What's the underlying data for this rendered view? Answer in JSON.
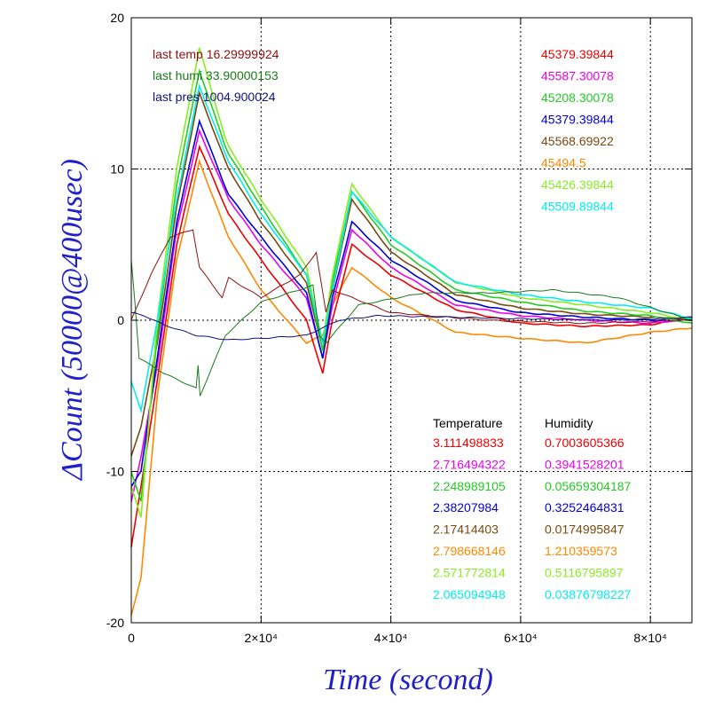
{
  "chart_data": {
    "type": "line",
    "xlabel": "Time (second)",
    "ylabel": "ΔCount (50000@400usec)",
    "xlim": [
      0,
      86400
    ],
    "ylim": [
      -20,
      20
    ],
    "x_ticks": [
      {
        "value": 0,
        "label": "0"
      },
      {
        "value": 20000,
        "label": "2×10⁴"
      },
      {
        "value": 40000,
        "label": "4×10⁴"
      },
      {
        "value": 60000,
        "label": "6×10⁴"
      },
      {
        "value": 80000,
        "label": "8×10⁴"
      }
    ],
    "y_ticks": [
      {
        "value": -20,
        "label": "-20"
      },
      {
        "value": -10,
        "label": "-10"
      },
      {
        "value": 0,
        "label": "0"
      },
      {
        "value": 10,
        "label": "10"
      },
      {
        "value": 20,
        "label": "20"
      }
    ],
    "grid": true,
    "last_values": [
      {
        "label": "last temp 16.29999924",
        "color": "#8b1010"
      },
      {
        "label": "last humi 33.90000153",
        "color": "#1a7a1a"
      },
      {
        "label": "last pres 1004.900024",
        "color": "#10107a"
      }
    ],
    "series_labels": [
      {
        "label": "45379.39844",
        "color": "#ee0000"
      },
      {
        "label": "45587.30078",
        "color": "#ee00ee"
      },
      {
        "label": "45208.30078",
        "color": "#22cc22"
      },
      {
        "label": "45379.39844",
        "color": "#0000dd"
      },
      {
        "label": "45568.69922",
        "color": "#7a4a10"
      },
      {
        "label": "45494.5",
        "color": "#ff8800"
      },
      {
        "label": "45426.39844",
        "color": "#88ee22"
      },
      {
        "label": "45509.89844",
        "color": "#00eeee"
      }
    ],
    "coef_header": {
      "temperature": "Temperature",
      "humidity": "Humidity"
    },
    "coefficients": [
      {
        "temperature": "3.111498833",
        "humidity": "0.7003605366",
        "color": "#ee0000"
      },
      {
        "temperature": "2.716494322",
        "humidity": "0.3941528201",
        "color": "#ee00ee"
      },
      {
        "temperature": "2.248989105",
        "humidity": "0.05659304187",
        "color": "#22cc22"
      },
      {
        "temperature": "2.38207984",
        "humidity": "0.3252464831",
        "color": "#0000dd"
      },
      {
        "temperature": "2.17414403",
        "humidity": "0.0174995847",
        "color": "#7a4a10"
      },
      {
        "temperature": "2.798668146",
        "humidity": "1.210359573",
        "color": "#ff8800"
      },
      {
        "temperature": "2.571772814",
        "humidity": "0.5116795897",
        "color": "#88ee22"
      },
      {
        "temperature": "2.065094948",
        "humidity": "0.03876798227",
        "color": "#00eeee"
      }
    ],
    "series": [
      {
        "color": "#ff8800",
        "x": [
          0,
          1500,
          4000,
          7000,
          10500,
          14500,
          15000,
          20000,
          27000,
          29500,
          31000,
          34000,
          40000,
          50000,
          60000,
          70000,
          80000,
          86400
        ],
        "y": [
          -19.5,
          -17,
          -5,
          4,
          10.5,
          6,
          5.5,
          2,
          -1.5,
          -1,
          1,
          3.5,
          1.5,
          -0.8,
          -1.2,
          -1.5,
          -0.8,
          -0.5
        ]
      },
      {
        "color": "#ee0000",
        "x": [
          0,
          1500,
          4000,
          7000,
          10500,
          14500,
          15000,
          20000,
          27000,
          29500,
          31000,
          34000,
          40000,
          50000,
          60000,
          70000,
          80000,
          86400
        ],
        "y": [
          -15,
          -11,
          -4,
          5,
          11.5,
          7.5,
          7,
          4,
          0,
          -3.5,
          0,
          5,
          3,
          0.7,
          -0.2,
          -0.4,
          -0.3,
          0.2
        ]
      },
      {
        "color": "#ee00ee",
        "x": [
          0,
          1500,
          4000,
          7000,
          10500,
          14500,
          15000,
          20000,
          27000,
          29500,
          31000,
          34000,
          40000,
          50000,
          60000,
          70000,
          80000,
          86400
        ],
        "y": [
          -12,
          -9,
          -3,
          6,
          12.5,
          8.5,
          8,
          5,
          1.5,
          -2.5,
          1,
          6,
          3.5,
          1,
          0.3,
          0,
          -0.2,
          0.1
        ]
      },
      {
        "color": "#0000dd",
        "x": [
          0,
          1500,
          4000,
          7000,
          10500,
          14500,
          15000,
          20000,
          27000,
          29500,
          31000,
          34000,
          40000,
          50000,
          60000,
          70000,
          80000,
          86400
        ],
        "y": [
          -11,
          -10,
          -2.5,
          6.5,
          13.2,
          8.8,
          8.3,
          5.5,
          1.8,
          -2.5,
          1.5,
          6.5,
          4,
          1.3,
          0.5,
          0.2,
          0,
          0.1
        ]
      },
      {
        "color": "#7a4a10",
        "x": [
          0,
          1500,
          4000,
          7000,
          10500,
          14500,
          15000,
          20000,
          27000,
          29500,
          31000,
          34000,
          40000,
          50000,
          60000,
          70000,
          80000,
          86400
        ],
        "y": [
          -9,
          -7,
          -1.5,
          7.5,
          15,
          10.5,
          10,
          6.5,
          2.5,
          -2,
          2,
          8,
          4.5,
          1.7,
          0.8,
          0.4,
          0.2,
          0
        ]
      },
      {
        "color": "#22cc22",
        "x": [
          0,
          1500,
          4000,
          7000,
          10500,
          14500,
          15000,
          20000,
          27000,
          29500,
          31000,
          34000,
          40000,
          50000,
          60000,
          70000,
          80000,
          86400
        ],
        "y": [
          -10,
          -12,
          -1,
          9,
          16.5,
          11.5,
          11,
          7.5,
          3,
          -2,
          2.5,
          8.5,
          5,
          2,
          1.2,
          0.6,
          0.3,
          -0.2
        ]
      },
      {
        "color": "#88ee22",
        "x": [
          0,
          1500,
          4000,
          7000,
          10500,
          14500,
          15000,
          20000,
          27000,
          29500,
          31000,
          34000,
          40000,
          50000,
          60000,
          70000,
          80000,
          86400
        ],
        "y": [
          -11,
          -13,
          0,
          10,
          18,
          12,
          11.5,
          8,
          3.5,
          -1.5,
          3,
          9,
          5.5,
          2.5,
          1.5,
          1,
          0.5,
          0
        ]
      },
      {
        "color": "#00eeee",
        "x": [
          0,
          1500,
          4000,
          7000,
          10500,
          14500,
          15000,
          20000,
          27000,
          29500,
          31000,
          34000,
          40000,
          50000,
          60000,
          70000,
          80000,
          86400
        ],
        "y": [
          -4,
          -6,
          0,
          8,
          15.5,
          11,
          10.5,
          7,
          3,
          -1.5,
          2,
          8.5,
          5.5,
          2.5,
          1.7,
          1.2,
          0.8,
          0.1
        ]
      },
      {
        "color": "#8b1010",
        "x": [
          0,
          3000,
          6000,
          9500,
          10500,
          14000,
          15000,
          20000,
          26000,
          28500,
          30000,
          31000,
          40000,
          55000,
          70000,
          86400
        ],
        "y": [
          0,
          3,
          5.5,
          6,
          3.5,
          1.5,
          2.8,
          1.5,
          3,
          4.5,
          0.5,
          2,
          0.5,
          0,
          -0.2,
          0
        ]
      },
      {
        "color": "#1a7a1a",
        "x": [
          0,
          600,
          1200,
          5000,
          10000,
          10300,
          10600,
          14500,
          15000,
          20000,
          28000,
          29000,
          30000,
          35000,
          45000,
          55000,
          65000,
          75000,
          86400
        ],
        "y": [
          4,
          1,
          -2.5,
          -3.5,
          -4.5,
          -3,
          -5,
          -1,
          -0.8,
          1.2,
          2.3,
          -1,
          -1.5,
          1,
          1.8,
          1.8,
          2,
          1.5,
          0
        ]
      },
      {
        "color": "#10107a",
        "x": [
          0,
          2000,
          5000,
          10000,
          15000,
          20000,
          27000,
          29500,
          32000,
          38000,
          50000,
          60000,
          75000,
          86400
        ],
        "y": [
          0.5,
          0.3,
          -0.3,
          -1,
          -1.3,
          -1.2,
          -1,
          -0.5,
          0,
          0.3,
          0.2,
          0.1,
          0,
          0.2
        ]
      }
    ]
  }
}
